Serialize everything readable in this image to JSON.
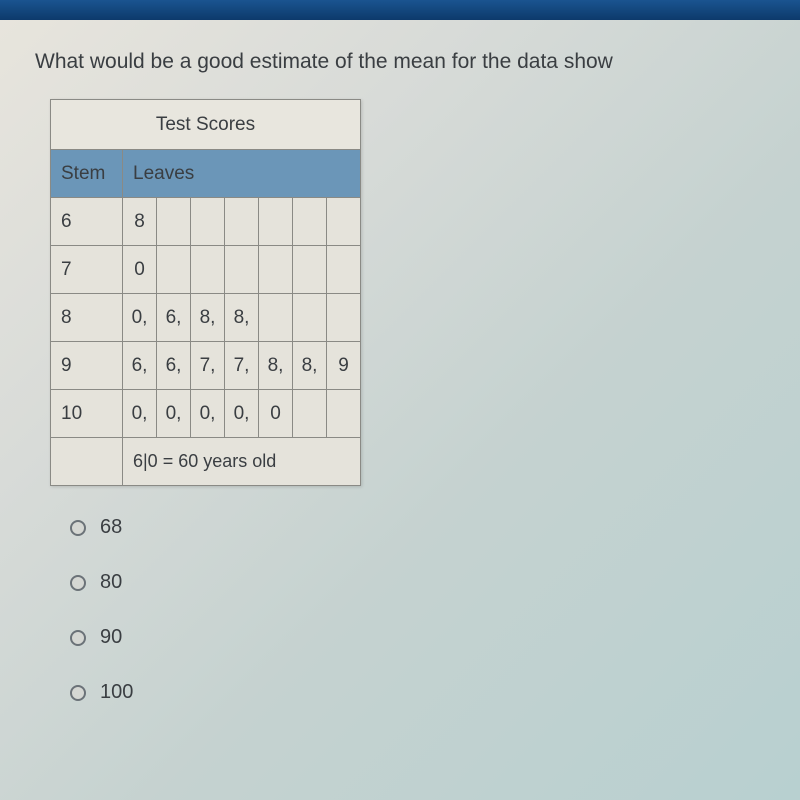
{
  "question": "What would be a good estimate of the mean for the data show",
  "table": {
    "title": "Test Scores",
    "stem_header": "Stem",
    "leaves_header": "Leaves",
    "rows": [
      {
        "stem": "6",
        "leaves": [
          "8"
        ]
      },
      {
        "stem": "7",
        "leaves": [
          "0"
        ]
      },
      {
        "stem": "8",
        "leaves": [
          "0,",
          "6,",
          "8,",
          "8,"
        ]
      },
      {
        "stem": "9",
        "leaves": [
          "6,",
          "6,",
          "7,",
          "7,",
          "8,",
          "8,",
          "9"
        ]
      },
      {
        "stem": "10",
        "leaves": [
          "0,",
          "0,",
          "0,",
          "0,",
          "0"
        ]
      }
    ],
    "key_text": "6|0 = 60 years old",
    "leaf_cols": 7,
    "header_bg": "#6b96b8",
    "cell_bg": "#e5e3db",
    "border_color": "#8a8a85",
    "text_color": "#3a3e42",
    "font_size": 19
  },
  "options": [
    {
      "label": "68",
      "selected": false
    },
    {
      "label": "80",
      "selected": false
    },
    {
      "label": "90",
      "selected": false
    },
    {
      "label": "100",
      "selected": false
    }
  ],
  "colors": {
    "top_bar": "#1a5490",
    "bg_gradient_start": "#e8e5dd",
    "bg_gradient_end": "#b8d0d0"
  }
}
